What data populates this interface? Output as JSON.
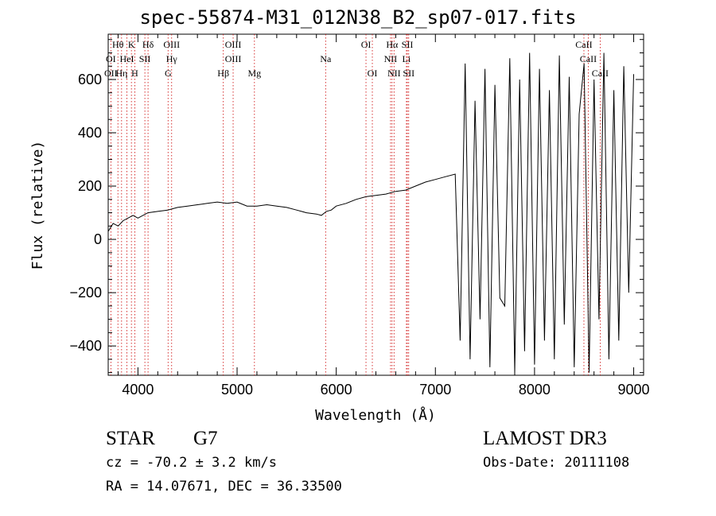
{
  "header": {
    "title": "spec-55874-M31_012N38_B2_sp07-017.fits"
  },
  "info": {
    "star_class": "STAR",
    "spectral_type": "G7",
    "survey": "LAMOST DR3",
    "cz": "cz = -70.2 ± 3.2 km/s",
    "obs_date": "Obs-Date: 20111108",
    "radec": "RA =  14.07671, DEC =  36.33500"
  },
  "colors": {
    "line_marker": "#cc0000",
    "spectrum": "#000000"
  },
  "chart_data": {
    "type": "line",
    "title": "spec-55874-M31_012N38_B2_sp07-017.fits",
    "xlabel": "Wavelength (Å)",
    "ylabel": "Flux (relative)",
    "xlim": [
      3700,
      9100
    ],
    "ylim": [
      -510,
      770
    ],
    "x_ticks": [
      4000,
      5000,
      6000,
      7000,
      8000,
      9000
    ],
    "x_tick_labels": [
      "4000",
      "5000",
      "6000",
      "7000",
      "8000",
      "9000"
    ],
    "y_ticks": [
      -400,
      -200,
      0,
      200,
      400,
      600
    ],
    "y_tick_labels": [
      "−400",
      "−200",
      "0",
      "200",
      "400",
      "600"
    ],
    "line_markers": [
      {
        "label": "Hθ",
        "x": 3798,
        "row": 0
      },
      {
        "label": "K",
        "x": 3934,
        "row": 0
      },
      {
        "label": "Hδ",
        "x": 4102,
        "row": 0
      },
      {
        "label": "OIII",
        "x": 4340,
        "row": 0
      },
      {
        "label": "OIII",
        "x": 4960,
        "row": 0
      },
      {
        "label": "OI",
        "x": 6300,
        "row": 0
      },
      {
        "label": "Hα",
        "x": 6563,
        "row": 0
      },
      {
        "label": "SII",
        "x": 6717,
        "row": 0
      },
      {
        "label": "CaII",
        "x": 8498,
        "row": 0
      },
      {
        "label": "OI",
        "x": 3727,
        "row": 1
      },
      {
        "label": "HeI",
        "x": 3889,
        "row": 1
      },
      {
        "label": "SII",
        "x": 4070,
        "row": 1
      },
      {
        "label": "Hγ",
        "x": 4340,
        "row": 1
      },
      {
        "label": "OIII",
        "x": 4960,
        "row": 1
      },
      {
        "label": "Na",
        "x": 5893,
        "row": 1
      },
      {
        "label": "NII",
        "x": 6548,
        "row": 1
      },
      {
        "label": "Li",
        "x": 6708,
        "row": 1
      },
      {
        "label": "CaII",
        "x": 8542,
        "row": 1
      },
      {
        "label": "OII",
        "x": 3727,
        "row": 2
      },
      {
        "label": "Hη",
        "x": 3835,
        "row": 2
      },
      {
        "label": "H",
        "x": 3968,
        "row": 2
      },
      {
        "label": "G",
        "x": 4304,
        "row": 2
      },
      {
        "label": "Hβ",
        "x": 4861,
        "row": 2
      },
      {
        "label": "Mg",
        "x": 5175,
        "row": 2
      },
      {
        "label": "OI",
        "x": 6364,
        "row": 2
      },
      {
        "label": "NII",
        "x": 6583,
        "row": 2
      },
      {
        "label": "SII",
        "x": 6731,
        "row": 2
      },
      {
        "label": "CaII",
        "x": 8662,
        "row": 2
      }
    ],
    "series": [
      {
        "name": "flux",
        "x": [
          3700,
          3750,
          3800,
          3850,
          3900,
          3950,
          4000,
          4100,
          4200,
          4300,
          4400,
          4500,
          4600,
          4700,
          4800,
          4900,
          5000,
          5100,
          5200,
          5300,
          5400,
          5500,
          5600,
          5700,
          5800,
          5850,
          5900,
          5950,
          6000,
          6100,
          6200,
          6300,
          6400,
          6500,
          6600,
          6700,
          6800,
          6900,
          7000,
          7100,
          7200,
          7250,
          7300,
          7350,
          7400,
          7450,
          7500,
          7550,
          7600,
          7650,
          7700,
          7750,
          7800,
          7850,
          7900,
          7950,
          8000,
          8050,
          8100,
          8150,
          8200,
          8250,
          8300,
          8350,
          8400,
          8450,
          8500,
          8550,
          8600,
          8650,
          8700,
          8750,
          8800,
          8850,
          8900,
          8950,
          9000
        ],
        "y": [
          30,
          60,
          50,
          70,
          80,
          90,
          80,
          100,
          105,
          110,
          120,
          125,
          130,
          135,
          140,
          135,
          140,
          125,
          125,
          130,
          125,
          120,
          110,
          100,
          95,
          90,
          105,
          110,
          125,
          135,
          150,
          160,
          165,
          170,
          180,
          185,
          200,
          215,
          225,
          235,
          245,
          -380,
          660,
          -450,
          520,
          -300,
          640,
          -480,
          580,
          -220,
          -250,
          680,
          -500,
          600,
          -420,
          700,
          -470,
          640,
          -380,
          560,
          -450,
          690,
          -320,
          610,
          -480,
          470,
          660,
          -500,
          600,
          -300,
          700,
          -450,
          560,
          -380,
          650,
          -200,
          620
        ]
      }
    ]
  }
}
